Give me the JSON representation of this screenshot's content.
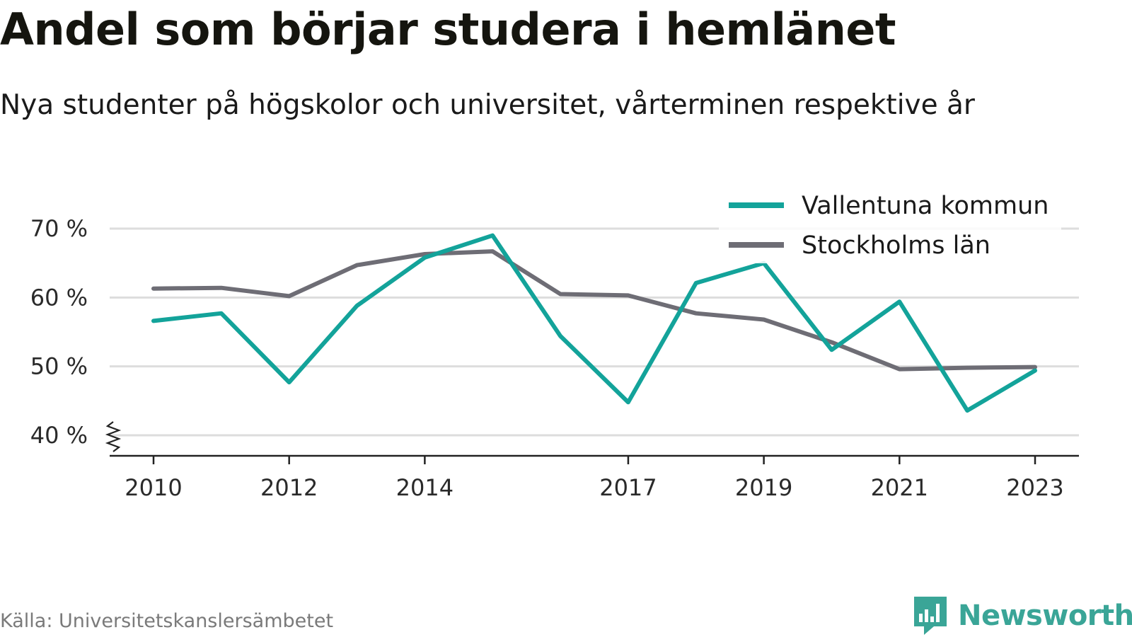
{
  "title": "Andel som börjar studera i hemlänet",
  "subtitle": "Nya studenter på högskolor och universitet, vårterminen respektive år",
  "source": "Källa: Universitetskanslersämbetet",
  "brand": {
    "name": "Newsworthy",
    "icon": "newsworthy-logo-icon",
    "color": "#3aa597"
  },
  "chart_data": {
    "type": "line",
    "title": "Andel som börjar studera i hemlänet",
    "subtitle": "Nya studenter på högskolor och universitet, vårterminen respektive år",
    "x": [
      2010,
      2011,
      2012,
      2013,
      2014,
      2015,
      2016,
      2017,
      2018,
      2019,
      2020,
      2021,
      2022,
      2023
    ],
    "x_tick_labels": [
      "2010",
      "2012",
      "2014",
      "2017",
      "2019",
      "2021",
      "2023"
    ],
    "y_ticks": [
      40,
      50,
      60,
      70
    ],
    "y_tick_labels": [
      "40 %",
      "50 %",
      "60 %",
      "70 %"
    ],
    "ylim": [
      37,
      72
    ],
    "y_axis_break": true,
    "grid": true,
    "legend_position": "top-right",
    "series": [
      {
        "name": "Vallentuna kommun",
        "color": "#13a39a",
        "values": [
          56.6,
          57.7,
          47.7,
          58.8,
          65.8,
          69.0,
          54.4,
          44.8,
          62.1,
          65.0,
          52.4,
          59.4,
          43.6,
          49.4
        ]
      },
      {
        "name": "Stockholms län",
        "color": "#6e6d75",
        "values": [
          61.3,
          61.4,
          60.2,
          64.7,
          66.3,
          66.7,
          60.5,
          60.3,
          57.7,
          56.8,
          53.5,
          49.6,
          49.8,
          49.9
        ]
      }
    ]
  }
}
